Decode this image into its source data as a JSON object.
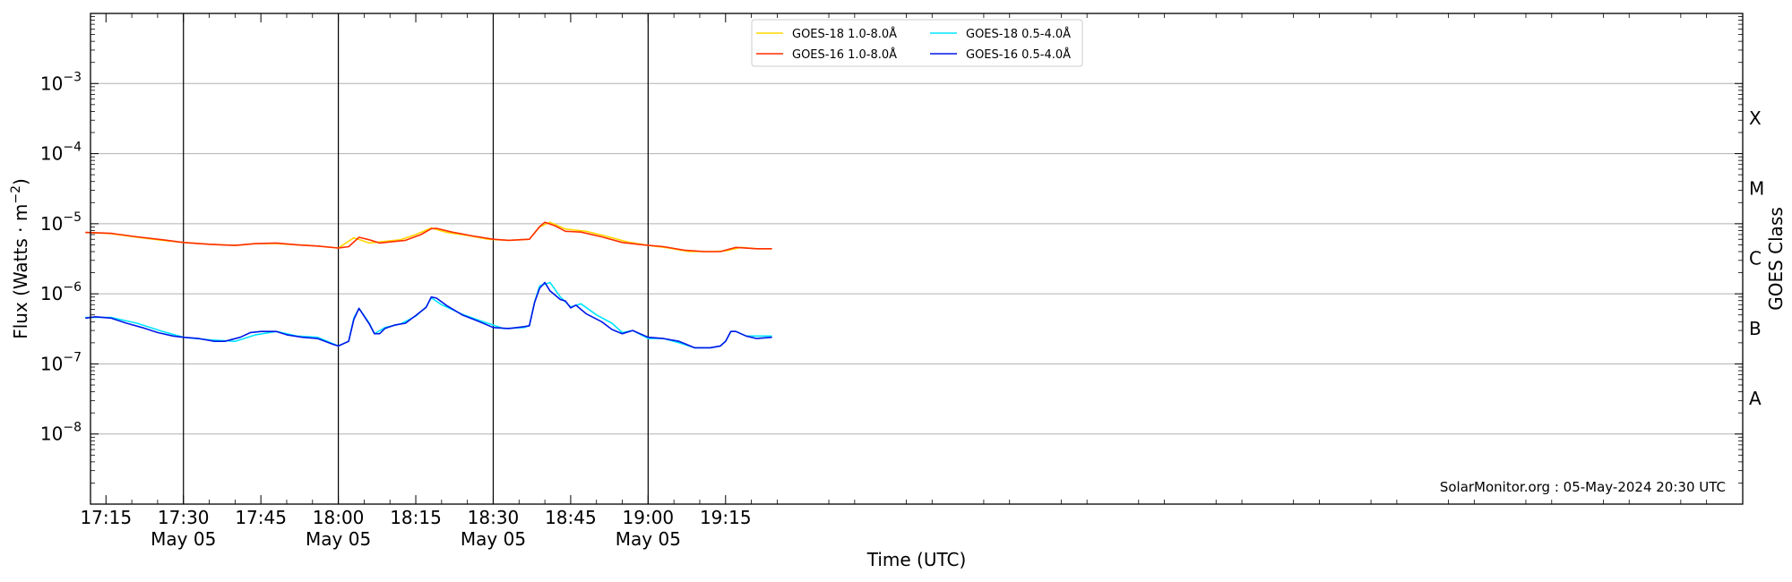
{
  "chart_data": {
    "type": "line",
    "title": "",
    "xlabel": "Time (UTC)",
    "ylabel": "Flux (Watts · m⁻²)",
    "ylabel_base": "Flux (Watts · m",
    "ylabel_sup": "−2",
    "ylabel_close": ")",
    "y2label": "GOES Class",
    "y_scale": "log",
    "ylim": [
      1e-09,
      0.01
    ],
    "xlim_minutes": [
      1032,
      1352
    ],
    "grid": "horizontal",
    "legend_position": "top-center",
    "y_ticks": [
      {
        "value": 1e-08,
        "label_base": "10",
        "label_exp": "−8"
      },
      {
        "value": 1e-07,
        "label_base": "10",
        "label_exp": "−7"
      },
      {
        "value": 1e-06,
        "label_base": "10",
        "label_exp": "−6"
      },
      {
        "value": 1e-05,
        "label_base": "10",
        "label_exp": "−5"
      },
      {
        "value": 0.0001,
        "label_base": "10",
        "label_exp": "−4"
      },
      {
        "value": 0.001,
        "label_base": "10",
        "label_exp": "−3"
      }
    ],
    "x_ticks": [
      {
        "time": "17:15",
        "date": "",
        "major": false
      },
      {
        "time": "17:30",
        "date": "May 05",
        "major": true
      },
      {
        "time": "17:45",
        "date": "",
        "major": false
      },
      {
        "time": "18:00",
        "date": "May 05",
        "major": true
      },
      {
        "time": "18:15",
        "date": "",
        "major": false
      },
      {
        "time": "18:30",
        "date": "May 05",
        "major": true
      },
      {
        "time": "18:45",
        "date": "",
        "major": false
      },
      {
        "time": "19:00",
        "date": "May 05",
        "major": true
      },
      {
        "time": "19:15",
        "date": "",
        "major": false
      }
    ],
    "goes_classes": [
      {
        "label": "A",
        "value": 3.2e-08
      },
      {
        "label": "B",
        "value": 3.2e-07
      },
      {
        "label": "C",
        "value": 3.2e-06
      },
      {
        "label": "M",
        "value": 3.2e-05
      },
      {
        "label": "X",
        "value": 0.00032
      }
    ],
    "series": [
      {
        "name": "GOES-18 1.0-8.0Å",
        "color": "#ffd700",
        "x": [
          "17:11",
          "17:16",
          "17:21",
          "17:26",
          "17:30",
          "17:35",
          "17:40",
          "17:44",
          "17:48",
          "17:52",
          "17:56",
          "18:00",
          "18:03",
          "18:06",
          "18:09",
          "18:12",
          "18:15",
          "18:18",
          "18:21",
          "18:25",
          "18:29",
          "18:33",
          "18:37",
          "18:39",
          "18:41",
          "18:44",
          "18:48",
          "18:52",
          "18:56",
          "19:00",
          "19:04",
          "19:08",
          "19:12",
          "19:15",
          "19:18",
          "19:21",
          "19:24"
        ],
        "y": [
          7.5e-06,
          7.2e-06,
          6.4e-06,
          5.8e-06,
          5.4e-06,
          5.1e-06,
          4.9e-06,
          5.2e-06,
          5.2e-06,
          5e-06,
          4.8e-06,
          4.5e-06,
          6.3e-06,
          5.3e-06,
          5.6e-06,
          5.9e-06,
          7e-06,
          8.7e-06,
          7.5e-06,
          6.8e-06,
          6e-06,
          5.8e-06,
          6e-06,
          9e-06,
          1.05e-05,
          8.4e-06,
          7.8e-06,
          6.6e-06,
          5.5e-06,
          4.9e-06,
          4.5e-06,
          4e-06,
          4e-06,
          4.1e-06,
          4.6e-06,
          4.4e-06,
          4.4e-06
        ]
      },
      {
        "name": "GOES-16 1.0-8.0Å",
        "color": "#ff2d00",
        "x": [
          "17:11",
          "17:16",
          "17:21",
          "17:26",
          "17:30",
          "17:35",
          "17:40",
          "17:44",
          "17:48",
          "17:52",
          "17:56",
          "18:00",
          "18:02",
          "18:04",
          "18:06",
          "18:08",
          "18:10",
          "18:13",
          "18:16",
          "18:18",
          "18:19",
          "18:22",
          "18:26",
          "18:30",
          "18:33",
          "18:37",
          "18:39",
          "18:40",
          "18:42",
          "18:44",
          "18:47",
          "18:51",
          "18:55",
          "18:59",
          "19:03",
          "19:07",
          "19:11",
          "19:14",
          "19:15",
          "19:17",
          "19:21",
          "19:24"
        ],
        "y": [
          7.5e-06,
          7.3e-06,
          6.5e-06,
          5.9e-06,
          5.4e-06,
          5.1e-06,
          4.9e-06,
          5.2e-06,
          5.3e-06,
          5e-06,
          4.8e-06,
          4.5e-06,
          4.7e-06,
          6.4e-06,
          5.9e-06,
          5.3e-06,
          5.5e-06,
          5.8e-06,
          7e-06,
          8.5e-06,
          8.6e-06,
          7.6e-06,
          6.7e-06,
          6e-06,
          5.8e-06,
          6e-06,
          9.1e-06,
          1.05e-05,
          9.3e-06,
          7.8e-06,
          7.6e-06,
          6.5e-06,
          5.4e-06,
          5e-06,
          4.7e-06,
          4.2e-06,
          4e-06,
          4e-06,
          4.2e-06,
          4.6e-06,
          4.4e-06,
          4.4e-06
        ]
      },
      {
        "name": "GOES-18 0.5-4.0Å",
        "color": "#00e5ff",
        "x": [
          "17:11",
          "17:16",
          "17:21",
          "17:26",
          "17:30",
          "17:35",
          "17:40",
          "17:44",
          "17:48",
          "17:52",
          "17:56",
          "18:00",
          "18:02",
          "18:03",
          "18:04",
          "18:06",
          "18:07",
          "18:09",
          "18:12",
          "18:15",
          "18:17",
          "18:18",
          "18:20",
          "18:24",
          "18:28",
          "18:32",
          "18:36",
          "18:37",
          "18:38",
          "18:39",
          "18:41",
          "18:43",
          "18:45",
          "18:47",
          "18:50",
          "18:53",
          "18:55",
          "18:57",
          "19:00",
          "19:03",
          "19:06",
          "19:09",
          "19:12",
          "19:14",
          "19:15",
          "19:16",
          "19:17",
          "19:19",
          "19:21",
          "19:24"
        ],
        "y": [
          4.6e-07,
          4.6e-07,
          3.8e-07,
          2.9e-07,
          2.4e-07,
          2.2e-07,
          2.1e-07,
          2.6e-07,
          2.9e-07,
          2.5e-07,
          2.4e-07,
          1.8e-07,
          2.1e-07,
          4.5e-07,
          6.2e-07,
          3.8e-07,
          2.7e-07,
          3.3e-07,
          3.7e-07,
          4.8e-07,
          6.5e-07,
          8.8e-07,
          7e-07,
          5.1e-07,
          4e-07,
          3.2e-07,
          3.3e-07,
          3.5e-07,
          7.6e-07,
          1.3e-06,
          1.45e-06,
          9e-07,
          6.5e-07,
          7.2e-07,
          5e-07,
          3.8e-07,
          2.8e-07,
          3e-07,
          2.3e-07,
          2.3e-07,
          2e-07,
          1.7e-07,
          1.7e-07,
          1.8e-07,
          2.1e-07,
          2.9e-07,
          2.9e-07,
          2.5e-07,
          2.5e-07,
          2.5e-07
        ]
      },
      {
        "name": "GOES-16 0.5-4.0Å",
        "color": "#0016e8",
        "x": [
          "17:11",
          "17:13",
          "17:16",
          "17:19",
          "17:22",
          "17:25",
          "17:28",
          "17:30",
          "17:33",
          "17:36",
          "17:38",
          "17:41",
          "17:43",
          "17:45",
          "17:48",
          "17:50",
          "17:53",
          "17:56",
          "17:59",
          "18:00",
          "18:02",
          "18:03",
          "18:04",
          "18:06",
          "18:07",
          "18:08",
          "18:09",
          "18:11",
          "18:13",
          "18:15",
          "18:17",
          "18:18",
          "18:19",
          "18:21",
          "18:24",
          "18:27",
          "18:30",
          "18:33",
          "18:36",
          "18:37",
          "18:38",
          "18:39",
          "18:40",
          "18:41",
          "18:43",
          "18:44",
          "18:45",
          "18:46",
          "18:48",
          "18:51",
          "18:53",
          "18:55",
          "18:57",
          "19:00",
          "19:03",
          "19:06",
          "19:09",
          "19:12",
          "19:14",
          "19:15",
          "19:16",
          "19:17",
          "19:19",
          "19:21",
          "19:24"
        ],
        "y": [
          4.5e-07,
          4.7e-07,
          4.5e-07,
          3.8e-07,
          3.3e-07,
          2.8e-07,
          2.5e-07,
          2.4e-07,
          2.3e-07,
          2.1e-07,
          2.1e-07,
          2.4e-07,
          2.8e-07,
          2.9e-07,
          2.9e-07,
          2.6e-07,
          2.4e-07,
          2.3e-07,
          1.9e-07,
          1.8e-07,
          2.1e-07,
          4.3e-07,
          6.2e-07,
          3.7e-07,
          2.7e-07,
          2.7e-07,
          3.2e-07,
          3.6e-07,
          3.8e-07,
          4.9e-07,
          6.4e-07,
          9e-07,
          8.7e-07,
          6.8e-07,
          5e-07,
          4.1e-07,
          3.3e-07,
          3.2e-07,
          3.4e-07,
          3.5e-07,
          7.5e-07,
          1.2e-06,
          1.45e-06,
          1.1e-06,
          8.3e-07,
          7.9e-07,
          6.3e-07,
          6.9e-07,
          5.2e-07,
          4e-07,
          3.1e-07,
          2.7e-07,
          3e-07,
          2.4e-07,
          2.3e-07,
          2.1e-07,
          1.7e-07,
          1.7e-07,
          1.8e-07,
          2.1e-07,
          2.9e-07,
          2.9e-07,
          2.5e-07,
          2.3e-07,
          2.4e-07
        ]
      }
    ],
    "annotation": "SolarMonitor.org : 05-May-2024 20:30 UTC"
  }
}
